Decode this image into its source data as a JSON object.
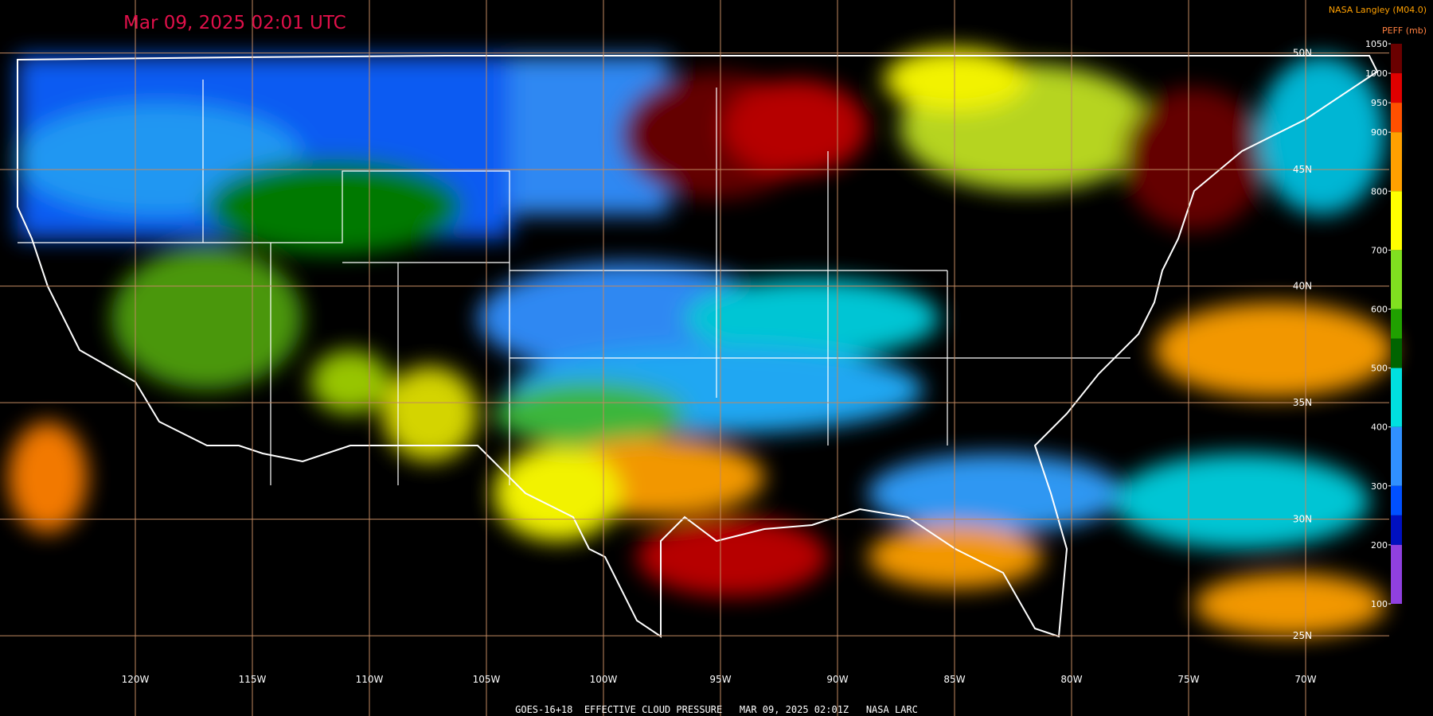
{
  "header": {
    "title": "Mar 09, 2025 02:01 UTC",
    "source": "NASA Langley (M04.0)",
    "footer": "GOES-16+18  EFFECTIVE CLOUD PRESSURE   MAR 09, 2025 02:01Z   NASA LARC"
  },
  "grid": {
    "lon": [
      {
        "value": -120,
        "label": "120W"
      },
      {
        "value": -115,
        "label": "115W"
      },
      {
        "value": -110,
        "label": "110W"
      },
      {
        "value": -105,
        "label": "105W"
      },
      {
        "value": -100,
        "label": "100W"
      },
      {
        "value": -95,
        "label": "95W"
      },
      {
        "value": -90,
        "label": "90W"
      },
      {
        "value": -85,
        "label": "85W"
      },
      {
        "value": -80,
        "label": "80W"
      },
      {
        "value": -75,
        "label": "75W"
      },
      {
        "value": -70,
        "label": "70W"
      }
    ],
    "lat": [
      {
        "value": 50,
        "label": "50N"
      },
      {
        "value": 45,
        "label": "45N"
      },
      {
        "value": 40,
        "label": "40N"
      },
      {
        "value": 35,
        "label": "35N"
      },
      {
        "value": 30,
        "label": "30N"
      },
      {
        "value": 25,
        "label": "25N"
      }
    ]
  },
  "colorbar": {
    "label": "PEFF (mb)",
    "lim": [
      100,
      1050
    ],
    "ticks": [
      1050,
      1000,
      950,
      900,
      800,
      700,
      600,
      500,
      400,
      300,
      200,
      100
    ],
    "segments": [
      {
        "from": 1000,
        "to": 1050,
        "color": "#6a0000"
      },
      {
        "from": 950,
        "to": 1000,
        "color": "#e00000"
      },
      {
        "from": 900,
        "to": 950,
        "color": "#ff5000"
      },
      {
        "from": 800,
        "to": 900,
        "color": "#ffa000"
      },
      {
        "from": 700,
        "to": 800,
        "color": "#ffff00"
      },
      {
        "from": 600,
        "to": 700,
        "color": "#80e020"
      },
      {
        "from": 550,
        "to": 600,
        "color": "#20a000"
      },
      {
        "from": 500,
        "to": 550,
        "color": "#006400"
      },
      {
        "from": 400,
        "to": 500,
        "color": "#00e0e0"
      },
      {
        "from": 300,
        "to": 400,
        "color": "#3090ff"
      },
      {
        "from": 250,
        "to": 300,
        "color": "#0050ff"
      },
      {
        "from": 200,
        "to": 250,
        "color": "#0010c0"
      },
      {
        "from": 100,
        "to": 200,
        "color": "#9040e0"
      }
    ]
  }
}
